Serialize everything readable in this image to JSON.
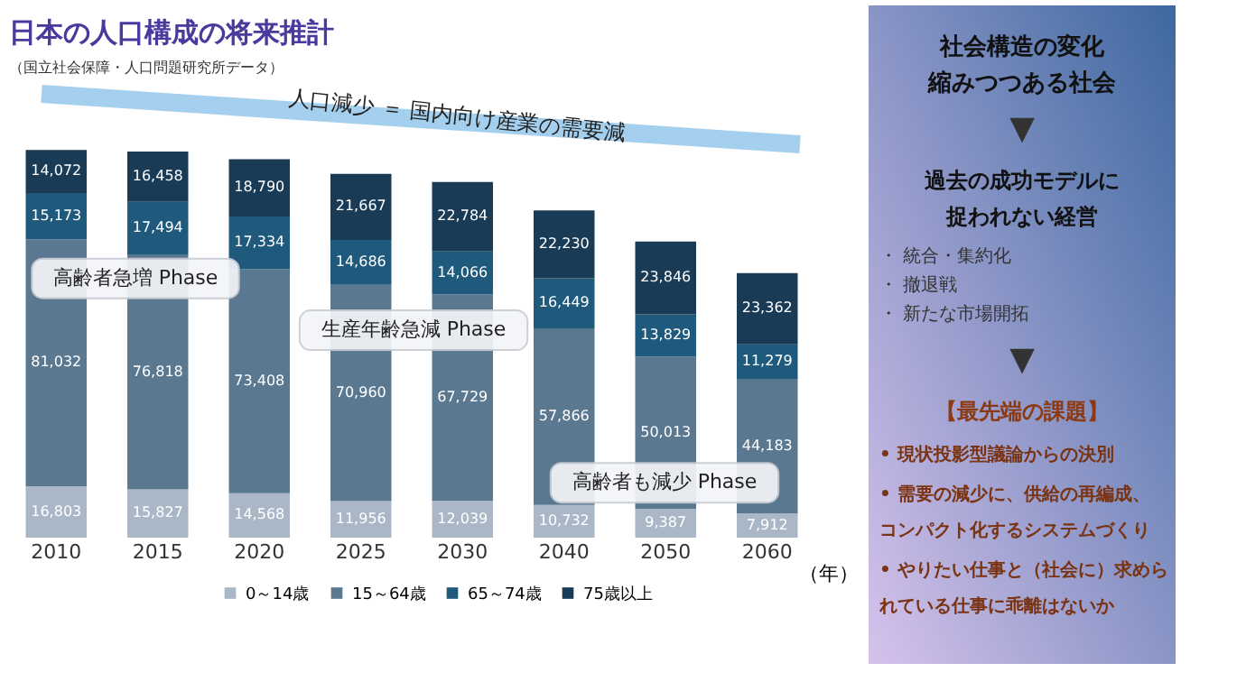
{
  "chart_data": [
    {
      "type": "bar",
      "stacked": true,
      "legend": "bottom",
      "title": "日本の人口構成の将来推計",
      "xlabel": "（年）",
      "categories": [
        "2010",
        "2015",
        "2020",
        "2025",
        "2030",
        "2040",
        "2050",
        "2060"
      ],
      "series": [
        {
          "name": "0～14歳",
          "color": "#a9b7c6",
          "values": [
            16803,
            15827,
            14568,
            11956,
            12039,
            10732,
            9387,
            7912
          ],
          "value_labels": [
            "16,803",
            "15,827",
            "14,568",
            "11,956",
            "12,039",
            "10,732",
            "9,387",
            "7,912"
          ]
        },
        {
          "name": "15～64歳",
          "color": "#5b7891",
          "values": [
            81032,
            76818,
            73408,
            70960,
            67729,
            57866,
            50013,
            44183
          ],
          "value_labels": [
            "81,032",
            "76,818",
            "73,408",
            "70,960",
            "67,729",
            "57,866",
            "50,013",
            "44,183"
          ]
        },
        {
          "name": "65～74歳",
          "color": "#1f5a7c",
          "values": [
            15173,
            17494,
            17334,
            14686,
            14066,
            16449,
            13829,
            11279
          ],
          "value_labels": [
            "15,173",
            "17,494",
            "17,334",
            "14,686",
            "14,066",
            "16,449",
            "13,829",
            "11,279"
          ]
        },
        {
          "name": "75歳以上",
          "color": "#1a3b56",
          "values": [
            14072,
            16458,
            18790,
            21667,
            22784,
            22230,
            23846,
            23362
          ],
          "value_labels": [
            "14,072",
            "16,458",
            "18,790",
            "21,667",
            "22,784",
            "22,230",
            "23,846",
            "23,362"
          ]
        }
      ],
      "annotations": [
        "（国立社会保障・人口問題研究所データ）",
        "人口減少 ＝ 国内向け産業の需要減",
        "高齢者急増 Phase",
        "生産年齢急減 Phase",
        "高齢者も減少 Phase"
      ]
    },
    {
      "type": "other",
      "annotations": [
        "社会構造の変化",
        "縮みつつある社会",
        "▼",
        "過去の成功モデルに",
        "捉われない経営",
        "・ 統合・集約化",
        "・ 撤退戦",
        "・ 新たな市場開拓",
        "▼",
        "【最先端の課題】",
        "• 現状投影型議論からの決別",
        "• 需要の減少に、供給の再編成、",
        "コンパクト化するシステムづくり",
        "• やりたい仕事と（社会に）求めら",
        "れている仕事に乖離はないか"
      ]
    }
  ]
}
